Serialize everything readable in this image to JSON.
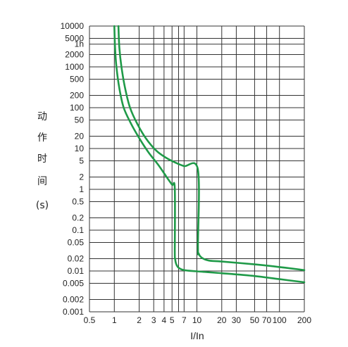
{
  "chart_data": {
    "type": "line",
    "title": "",
    "xlabel": "I/In",
    "ylabel": "动作时间(s)",
    "ylabel_chars": [
      "动",
      "作",
      "时",
      "间",
      "(s)"
    ],
    "xscale": "log",
    "yscale": "log",
    "xlim": [
      0.5,
      200
    ],
    "ylim": [
      0.001,
      10000
    ],
    "grid": true,
    "x_ticks": [
      {
        "value": 0.5,
        "label": "0.5"
      },
      {
        "value": 1,
        "label": "1"
      },
      {
        "value": 2,
        "label": "2"
      },
      {
        "value": 3,
        "label": "3"
      },
      {
        "value": 4,
        "label": "4"
      },
      {
        "value": 5,
        "label": "5"
      },
      {
        "value": 7,
        "label": "7"
      },
      {
        "value": 10,
        "label": "10"
      },
      {
        "value": 20,
        "label": "20"
      },
      {
        "value": 30,
        "label": "30"
      },
      {
        "value": 50,
        "label": "50"
      },
      {
        "value": 70,
        "label": "70"
      },
      {
        "value": 100,
        "label": "100"
      },
      {
        "value": 200,
        "label": "200"
      }
    ],
    "x_gridlines": [
      1,
      2,
      3,
      4,
      5,
      6,
      7,
      10,
      20,
      30,
      50,
      70,
      100
    ],
    "y_ticks": [
      {
        "value": 10000,
        "label": "10000"
      },
      {
        "value": 5000,
        "label": "5000"
      },
      {
        "value": 3600,
        "label": "1h"
      },
      {
        "value": 2000,
        "label": "2000"
      },
      {
        "value": 1000,
        "label": "1000"
      },
      {
        "value": 500,
        "label": "500"
      },
      {
        "value": 200,
        "label": "200"
      },
      {
        "value": 100,
        "label": "100"
      },
      {
        "value": 50,
        "label": "50"
      },
      {
        "value": 20,
        "label": "20"
      },
      {
        "value": 10,
        "label": "10"
      },
      {
        "value": 5,
        "label": "5"
      },
      {
        "value": 2,
        "label": "2"
      },
      {
        "value": 1,
        "label": "1"
      },
      {
        "value": 0.5,
        "label": "0.5"
      },
      {
        "value": 0.2,
        "label": "0.2"
      },
      {
        "value": 0.1,
        "label": "0.1"
      },
      {
        "value": 0.05,
        "label": "0.05"
      },
      {
        "value": 0.02,
        "label": "0.02"
      },
      {
        "value": 0.01,
        "label": "0.01"
      },
      {
        "value": 0.005,
        "label": "0.005"
      },
      {
        "value": 0.002,
        "label": "0.002"
      },
      {
        "value": 0.001,
        "label": "0.001"
      }
    ],
    "series": [
      {
        "color": "#1f9a48",
        "points": [
          [
            1.0,
            10000
          ],
          [
            1.02,
            3000
          ],
          [
            1.06,
            1000
          ],
          [
            1.15,
            300
          ],
          [
            1.3,
            100
          ],
          [
            1.6,
            40
          ],
          [
            2.0,
            18
          ],
          [
            2.6,
            8
          ],
          [
            3.4,
            4
          ],
          [
            4.3,
            2
          ],
          [
            5.0,
            1.3
          ],
          [
            5.4,
            1.05
          ],
          [
            5.4,
            0.03
          ],
          [
            5.45,
            0.02
          ],
          [
            5.6,
            0.015
          ],
          [
            6.0,
            0.012
          ],
          [
            7.0,
            0.0105
          ],
          [
            10,
            0.0098
          ],
          [
            20,
            0.0088
          ],
          [
            50,
            0.0075
          ],
          [
            100,
            0.0063
          ],
          [
            200,
            0.0053
          ]
        ]
      },
      {
        "color": "#1f9a48",
        "points": [
          [
            1.12,
            10000
          ],
          [
            1.15,
            3000
          ],
          [
            1.22,
            1000
          ],
          [
            1.35,
            300
          ],
          [
            1.55,
            100
          ],
          [
            1.9,
            40
          ],
          [
            2.4,
            18
          ],
          [
            3.2,
            9
          ],
          [
            4.2,
            6
          ],
          [
            5.5,
            4.5
          ],
          [
            7.0,
            3.7
          ],
          [
            10.3,
            3.0
          ],
          [
            10.3,
            0.04
          ],
          [
            10.5,
            0.027
          ],
          [
            11.5,
            0.021
          ],
          [
            14,
            0.018
          ],
          [
            20,
            0.017
          ],
          [
            50,
            0.0145
          ],
          [
            100,
            0.0125
          ],
          [
            200,
            0.0105
          ]
        ]
      }
    ]
  }
}
